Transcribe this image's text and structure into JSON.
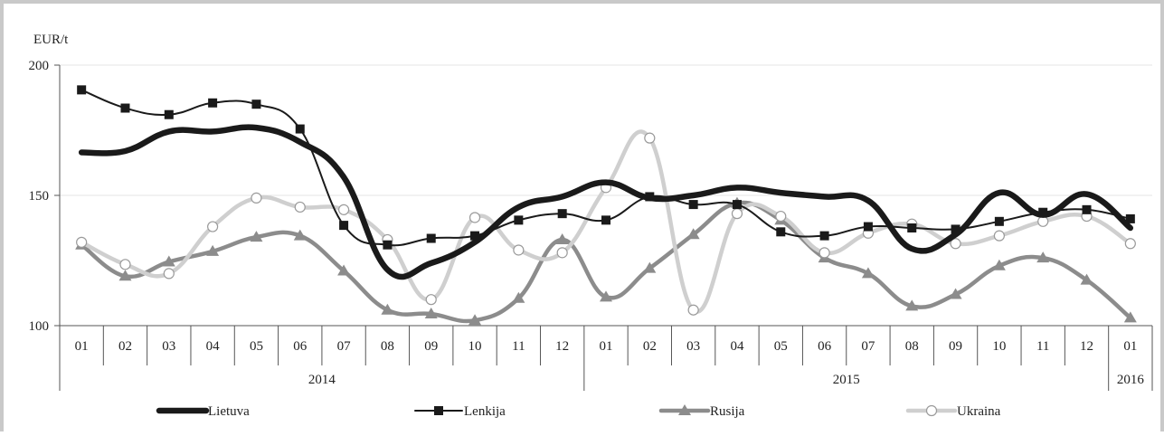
{
  "chart_data": {
    "type": "line",
    "title": "",
    "xlabel": "",
    "ylabel": "EUR/t",
    "ylim": [
      100,
      200
    ],
    "yticks": [
      100,
      150,
      200
    ],
    "grid": "horizontal",
    "legend_position": "bottom",
    "categories": [
      "01",
      "02",
      "03",
      "04",
      "05",
      "06",
      "07",
      "08",
      "09",
      "10",
      "11",
      "12",
      "01",
      "02",
      "03",
      "04",
      "05",
      "06",
      "07",
      "08",
      "09",
      "10",
      "11",
      "12",
      "01"
    ],
    "year_groups": [
      {
        "label": "2014",
        "start": 0,
        "end": 11
      },
      {
        "label": "2015",
        "start": 12,
        "end": 23
      },
      {
        "label": "2016",
        "start": 24,
        "end": 24
      }
    ],
    "series": [
      {
        "name": "Lietuva",
        "color": "#1a1a1a",
        "marker": "none",
        "values": [
          166.5,
          167,
          174.5,
          174.5,
          176,
          170.5,
          157,
          121.5,
          124,
          132,
          145.5,
          149.5,
          155,
          149,
          150,
          153,
          151,
          149.5,
          148,
          129.5,
          135,
          151,
          142.5,
          150.5,
          137.5
        ]
      },
      {
        "name": "Lenkija",
        "color": "#1a1a1a",
        "marker": "square",
        "values": [
          190.5,
          183.5,
          181,
          185.5,
          185,
          175.5,
          138.5,
          131,
          133.5,
          134.5,
          140.5,
          143,
          140.5,
          149.5,
          146.5,
          146.5,
          136,
          134.5,
          138,
          137.5,
          137,
          140,
          143.5,
          144.5,
          141
        ]
      },
      {
        "name": "Rusija",
        "color": "#8c8c8c",
        "marker": "triangle",
        "values": [
          131,
          119,
          124.5,
          128.5,
          134,
          134.5,
          121,
          106,
          104.5,
          102,
          110.5,
          133,
          111,
          122,
          135,
          147,
          140.5,
          126,
          120,
          107.5,
          112,
          123,
          126,
          117.5,
          103
        ]
      },
      {
        "name": "Ukraina",
        "color": "#cfcfcf",
        "marker": "circle",
        "values": [
          132,
          123.5,
          120,
          138,
          149,
          145.5,
          144.5,
          133,
          110,
          141.5,
          129,
          128,
          153,
          172,
          106,
          143,
          142,
          128,
          135.5,
          139,
          131.5,
          134.5,
          140,
          142,
          131.5
        ]
      }
    ]
  }
}
